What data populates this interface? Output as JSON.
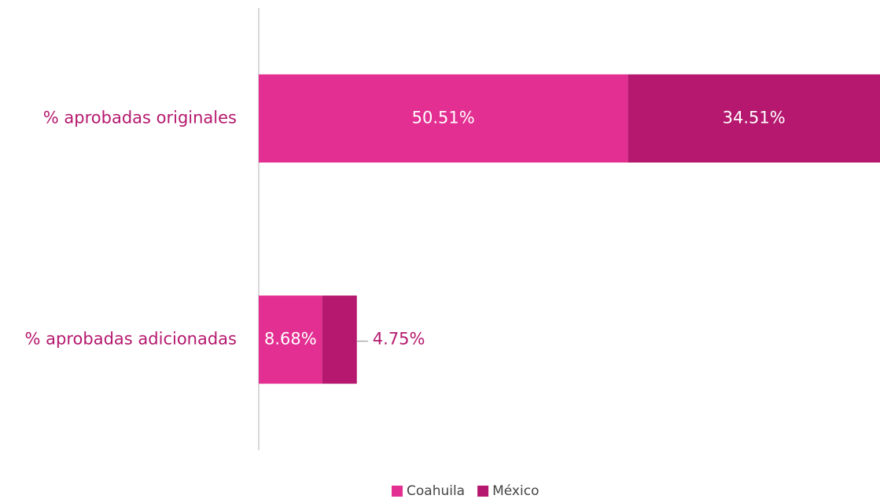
{
  "chart_data": {
    "type": "stacked-bar-horizontal",
    "categories": [
      "% aprobadas originales",
      "% aprobadas adicionadas"
    ],
    "series": [
      {
        "name": "Coahuila",
        "color": "#e32f91",
        "values": [
          50.51,
          8.68
        ],
        "value_labels": [
          "50.51%",
          "8.68%"
        ]
      },
      {
        "name": "México",
        "color": "#b5186e",
        "values": [
          34.51,
          4.75
        ],
        "value_labels": [
          "34.51%",
          "4.75%"
        ]
      }
    ],
    "legend": "bottom"
  }
}
